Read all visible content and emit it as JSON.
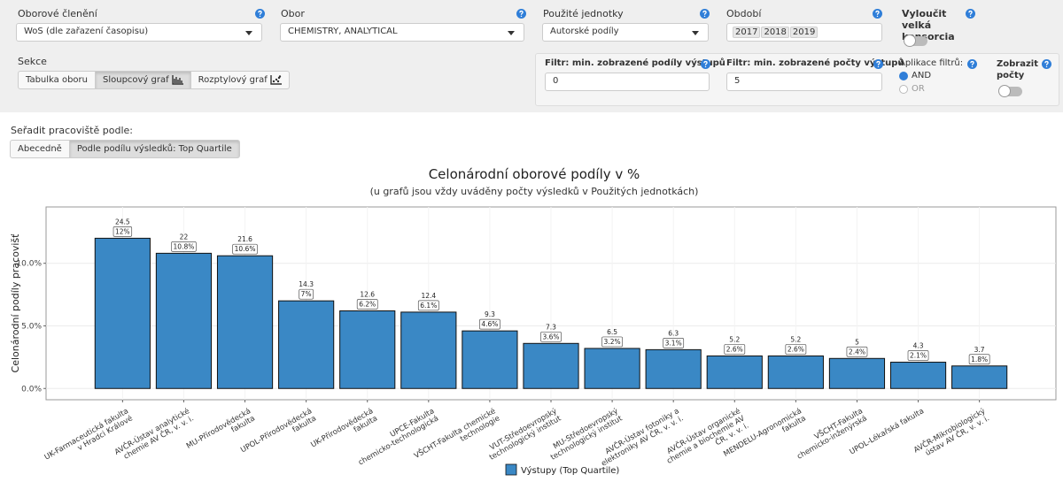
{
  "filters": {
    "field_classification": {
      "label": "Oborové členění",
      "value": "WoS (dle zařazení časopisu)"
    },
    "field": {
      "label": "Obor",
      "value": "CHEMISTRY, ANALYTICAL"
    },
    "units": {
      "label": "Použité jednotky",
      "value": "Autorské podíly"
    },
    "period": {
      "label": "Období",
      "values": [
        "2017",
        "2018",
        "2019"
      ]
    },
    "exclude_consortia": {
      "label": "Vyloučit velká konsorcia"
    },
    "section": {
      "label": "Sekce",
      "options": [
        "Tabulka oboru",
        "Sloupcový graf",
        "Rozptylový graf"
      ]
    },
    "min_share": {
      "label": "Filtr: min. zobrazené podíly výstupů",
      "value": "0"
    },
    "min_count": {
      "label": "Filtr: min. zobrazené počty výstupů",
      "value": "5"
    },
    "apply": {
      "label": "Aplikace filtrů:",
      "options": [
        "AND",
        "OR"
      ]
    },
    "show_counts": {
      "label": "Zobrazit počty"
    }
  },
  "sort": {
    "label": "Seřadit pracoviště podle:",
    "options": [
      "Abecedně",
      "Podle podílu výsledků: Top Quartile"
    ]
  },
  "chart_data": {
    "type": "bar",
    "title": "Celonárodní oborové podíly v %",
    "subtitle": "(u grafů jsou vždy uváděny počty výsledků v Použitých jednotkách)",
    "y_label": "Celonárodní podíly pracovišť",
    "categories": [
      "UK-Farmaceutická fakulta\nv Hradci Králové",
      "AVČR-Ústav analytické\nchemie AV ČR, v. v. i.",
      "MU-Přírodovědecká\nfakulta",
      "UPOL-Přírodovědecká\nfakulta",
      "UK-Přírodovědecká\nfakulta",
      "UPCE-Fakulta\nchemicko-technologická",
      "VŠCHT-Fakulta chemické\ntechnologie",
      "VUT-Středoevropský\ntechnologický institut",
      "MU-Středoevropský\ntechnologický institut",
      "AVČR-Ústav fotoniky a\nelektroniky AV ČR, v. v. i.",
      "AVČR-Ústav organické\nchemie a biochemie AV\nČR, v. v. i.",
      "MENDELU-Agronomická\nfakulta",
      "VŠCHT-Fakulta\nchemicko-inženýrská",
      "UPOL-Lékařská fakulta",
      "AVČR-Mikrobiologický\nústav AV ČR, v. v. i."
    ],
    "series": [
      {
        "name": "Výstupy (Top Quartile)",
        "color": "#3a88c5",
        "values": [
          12,
          10.8,
          10.6,
          7,
          6.2,
          6.1,
          4.6,
          3.6,
          3.2,
          3.1,
          2.6,
          2.6,
          2.4,
          2.1,
          1.8
        ],
        "value_labels": [
          "12%",
          "10.8%",
          "10.6%",
          "7%",
          "6.2%",
          "6.1%",
          "4.6%",
          "3.6%",
          "3.2%",
          "3.1%",
          "2.6%",
          "2.6%",
          "2.4%",
          "2.1%",
          "1.8%"
        ],
        "counts": [
          24.5,
          22,
          21.6,
          14.3,
          12.6,
          12.4,
          9.3,
          7.3,
          6.5,
          6.3,
          5.2,
          5.2,
          5,
          4.3,
          3.7
        ]
      }
    ],
    "ylim": [
      -0.9,
      14.5
    ],
    "yticks": [
      {
        "value": 0,
        "label": "0.0%"
      },
      {
        "value": 5,
        "label": "5.0%"
      },
      {
        "value": 10,
        "label": "10.0%"
      }
    ],
    "grid": true
  }
}
